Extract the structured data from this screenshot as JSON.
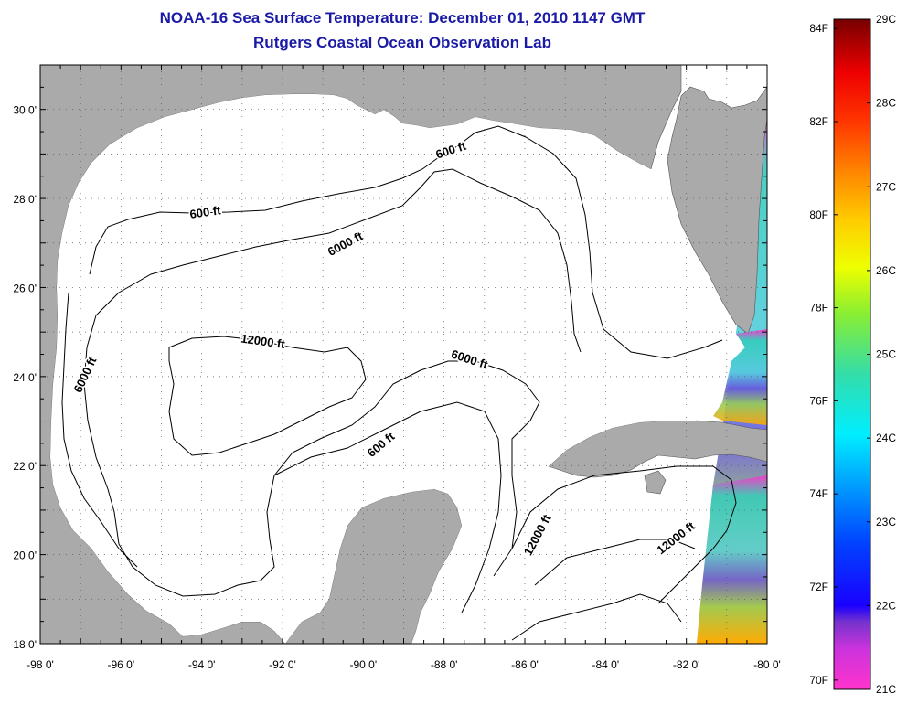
{
  "title": "NOAA-16 Sea Surface Temperature:  December 01, 2010 1147 GMT",
  "subtitle": "Rutgers Coastal Ocean Observation Lab",
  "colors": {
    "land": "#aaaaaa",
    "ocean_no_data": "#ffffff",
    "title_text": "#1a1aa6"
  },
  "map": {
    "lon_range": [
      -98,
      -80
    ],
    "lat_range": [
      18,
      31
    ],
    "x_ticks": [
      {
        "lon": -98,
        "label": "-98 0'"
      },
      {
        "lon": -96,
        "label": "-96 0'"
      },
      {
        "lon": -94,
        "label": "-94 0'"
      },
      {
        "lon": -92,
        "label": "-92 0'"
      },
      {
        "lon": -90,
        "label": "-90 0'"
      },
      {
        "lon": -88,
        "label": "-88 0'"
      },
      {
        "lon": -86,
        "label": "-86 0'"
      },
      {
        "lon": -84,
        "label": "-84 0'"
      },
      {
        "lon": -82,
        "label": "-82 0'"
      },
      {
        "lon": -80,
        "label": "-80 0'"
      }
    ],
    "y_ticks": [
      {
        "lat": 30,
        "label": "30 0'"
      },
      {
        "lat": 28,
        "label": "28 0'"
      },
      {
        "lat": 26,
        "label": "26 0'"
      },
      {
        "lat": 24,
        "label": "24 0'"
      },
      {
        "lat": 22,
        "label": "22 0'"
      },
      {
        "lat": 20,
        "label": "20 0'"
      },
      {
        "lat": 18,
        "label": "18 0'"
      }
    ],
    "contour_labels": [
      {
        "text": "600 ft",
        "lon": -93.9,
        "lat": 27.6,
        "angle": -8
      },
      {
        "text": "6000 ft",
        "lon": -90.4,
        "lat": 26.9,
        "angle": -28
      },
      {
        "text": "600 ft",
        "lon": -87.8,
        "lat": 29.0,
        "angle": -18
      },
      {
        "text": "12000 ft",
        "lon": -92.5,
        "lat": 24.7,
        "angle": 8
      },
      {
        "text": "6000 ft",
        "lon": -87.4,
        "lat": 24.3,
        "angle": 18
      },
      {
        "text": "6000 ft",
        "lon": -96.8,
        "lat": 24.0,
        "angle": -65
      },
      {
        "text": "600 ft",
        "lon": -89.5,
        "lat": 22.4,
        "angle": -40
      },
      {
        "text": "12000 ft",
        "lon": -85.6,
        "lat": 20.4,
        "angle": -62
      },
      {
        "text": "12000 ft",
        "lon": -82.2,
        "lat": 20.3,
        "angle": -38
      }
    ]
  },
  "colorbar": {
    "celsius_labels": [
      "29C",
      "28C",
      "27C",
      "26C",
      "25C",
      "24C",
      "23C",
      "22C",
      "21C"
    ],
    "fahrenheit_labels": [
      "84F",
      "82F",
      "80F",
      "78F",
      "76F",
      "74F",
      "72F",
      "70F"
    ],
    "celsius_range": [
      21,
      29
    ],
    "fahrenheit_values": [
      84,
      82,
      80,
      78,
      76,
      74,
      72,
      70
    ]
  }
}
